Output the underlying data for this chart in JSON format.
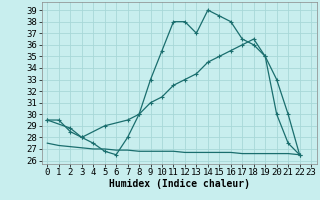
{
  "xlabel": "Humidex (Indice chaleur)",
  "background_color": "#c8eeee",
  "line_color": "#1a6e6e",
  "grid_color": "#a8d8d8",
  "xlim": [
    -0.5,
    23.5
  ],
  "ylim": [
    25.7,
    39.7
  ],
  "xticks": [
    0,
    1,
    2,
    3,
    4,
    5,
    6,
    7,
    8,
    9,
    10,
    11,
    12,
    13,
    14,
    15,
    16,
    17,
    18,
    19,
    20,
    21,
    22,
    23
  ],
  "yticks": [
    26,
    27,
    28,
    29,
    30,
    31,
    32,
    33,
    34,
    35,
    36,
    37,
    38,
    39
  ],
  "line1_x": [
    0,
    1,
    2,
    3,
    4,
    5,
    6,
    7,
    8,
    9,
    10,
    11,
    12,
    13,
    14,
    15,
    16,
    17,
    18,
    19,
    20,
    21,
    22
  ],
  "line1_y": [
    29.5,
    29.5,
    28.5,
    28.0,
    27.5,
    26.8,
    26.5,
    28.0,
    30.0,
    33.0,
    35.5,
    38.0,
    38.0,
    37.0,
    39.0,
    38.5,
    38.0,
    36.5,
    36.0,
    35.0,
    30.0,
    27.5,
    26.5
  ],
  "line2_x": [
    0,
    2,
    3,
    5,
    7,
    8,
    9,
    10,
    11,
    12,
    13,
    14,
    15,
    16,
    17,
    18,
    19,
    20,
    21,
    22
  ],
  "line2_y": [
    29.5,
    28.8,
    28.0,
    29.0,
    29.5,
    30.0,
    31.0,
    31.5,
    32.5,
    33.0,
    33.5,
    34.5,
    35.0,
    35.5,
    36.0,
    36.5,
    35.0,
    33.0,
    30.0,
    26.5
  ],
  "line3_x": [
    0,
    1,
    2,
    3,
    4,
    5,
    6,
    7,
    8,
    9,
    10,
    11,
    12,
    13,
    14,
    15,
    16,
    17,
    18,
    19,
    20,
    21,
    22
  ],
  "line3_y": [
    27.5,
    27.3,
    27.2,
    27.1,
    27.0,
    27.0,
    26.9,
    26.9,
    26.8,
    26.8,
    26.8,
    26.8,
    26.7,
    26.7,
    26.7,
    26.7,
    26.7,
    26.6,
    26.6,
    26.6,
    26.6,
    26.6,
    26.5
  ],
  "font_size": 6.5
}
